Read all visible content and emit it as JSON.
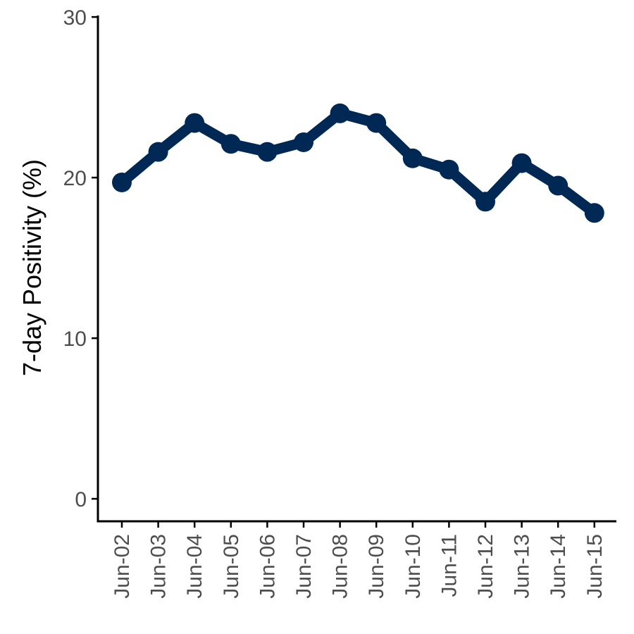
{
  "chart_data": {
    "type": "line",
    "title": "",
    "xlabel": "",
    "ylabel": "7-day Positivity (%)",
    "categories": [
      "Jun-02",
      "Jun-03",
      "Jun-04",
      "Jun-05",
      "Jun-06",
      "Jun-07",
      "Jun-08",
      "Jun-09",
      "Jun-10",
      "Jun-11",
      "Jun-12",
      "Jun-13",
      "Jun-14",
      "Jun-15"
    ],
    "series": [
      {
        "values": [
          19.7,
          21.6,
          23.4,
          22.1,
          21.6,
          22.2,
          24.0,
          23.4,
          21.2,
          20.5,
          18.5,
          20.9,
          19.5,
          17.8
        ]
      }
    ],
    "yticks": [
      "0",
      "10",
      "20",
      "30"
    ],
    "ylim": [
      -1.4,
      30.4
    ],
    "grid": false,
    "legend": "none",
    "line_color": "#002855"
  }
}
